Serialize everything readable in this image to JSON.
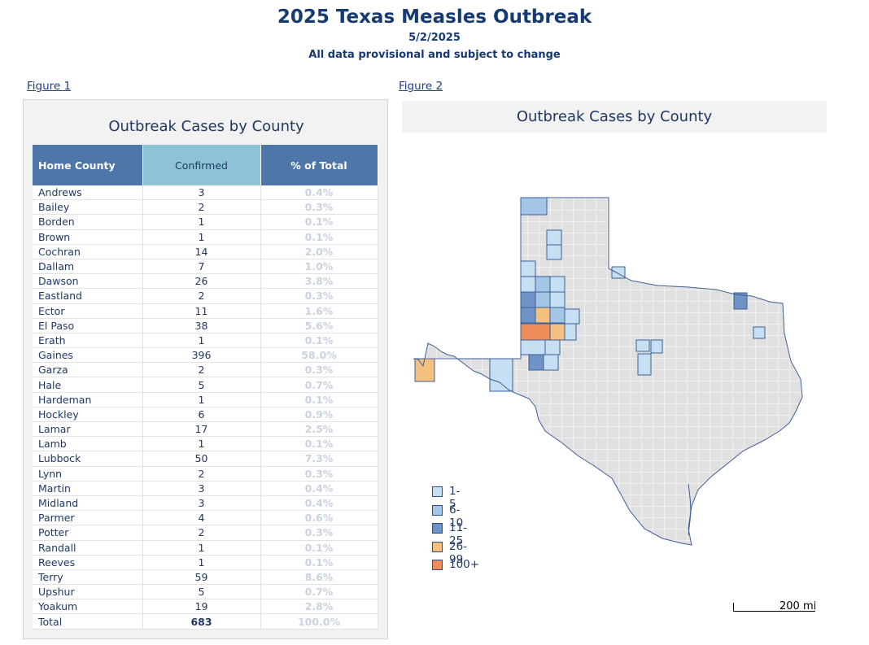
{
  "header": {
    "title": "2025 Texas Measles Outbreak",
    "date": "5/2/2025",
    "note": "All data provisional and subject to change"
  },
  "figure1": {
    "link_label": "Figure 1",
    "title": "Outbreak Cases by County",
    "columns": [
      "Home County",
      "Confirmed",
      "% of Total"
    ],
    "rows": [
      {
        "county": "Andrews",
        "confirmed": "3",
        "pct": "0.4%"
      },
      {
        "county": "Bailey",
        "confirmed": "2",
        "pct": "0.3%"
      },
      {
        "county": "Borden",
        "confirmed": "1",
        "pct": "0.1%"
      },
      {
        "county": "Brown",
        "confirmed": "1",
        "pct": "0.1%"
      },
      {
        "county": "Cochran",
        "confirmed": "14",
        "pct": "2.0%"
      },
      {
        "county": "Dallam",
        "confirmed": "7",
        "pct": "1.0%"
      },
      {
        "county": "Dawson",
        "confirmed": "26",
        "pct": "3.8%"
      },
      {
        "county": "Eastland",
        "confirmed": "2",
        "pct": "0.3%"
      },
      {
        "county": "Ector",
        "confirmed": "11",
        "pct": "1.6%"
      },
      {
        "county": "El Paso",
        "confirmed": "38",
        "pct": "5.6%"
      },
      {
        "county": "Erath",
        "confirmed": "1",
        "pct": "0.1%"
      },
      {
        "county": "Gaines",
        "confirmed": "396",
        "pct": "58.0%"
      },
      {
        "county": "Garza",
        "confirmed": "2",
        "pct": "0.3%"
      },
      {
        "county": "Hale",
        "confirmed": "5",
        "pct": "0.7%"
      },
      {
        "county": "Hardeman",
        "confirmed": "1",
        "pct": "0.1%"
      },
      {
        "county": "Hockley",
        "confirmed": "6",
        "pct": "0.9%"
      },
      {
        "county": "Lamar",
        "confirmed": "17",
        "pct": "2.5%"
      },
      {
        "county": "Lamb",
        "confirmed": "1",
        "pct": "0.1%"
      },
      {
        "county": "Lubbock",
        "confirmed": "50",
        "pct": "7.3%"
      },
      {
        "county": "Lynn",
        "confirmed": "2",
        "pct": "0.3%"
      },
      {
        "county": "Martin",
        "confirmed": "3",
        "pct": "0.4%"
      },
      {
        "county": "Midland",
        "confirmed": "3",
        "pct": "0.4%"
      },
      {
        "county": "Parmer",
        "confirmed": "4",
        "pct": "0.6%"
      },
      {
        "county": "Potter",
        "confirmed": "2",
        "pct": "0.3%"
      },
      {
        "county": "Randall",
        "confirmed": "1",
        "pct": "0.1%"
      },
      {
        "county": "Reeves",
        "confirmed": "1",
        "pct": "0.1%"
      },
      {
        "county": "Terry",
        "confirmed": "59",
        "pct": "8.6%"
      },
      {
        "county": "Upshur",
        "confirmed": "5",
        "pct": "0.7%"
      },
      {
        "county": "Yoakum",
        "confirmed": "19",
        "pct": "2.8%"
      }
    ],
    "total": {
      "label": "Total",
      "confirmed": "683",
      "pct": "100.0%"
    }
  },
  "figure2": {
    "link_label": "Figure 2",
    "title": "Outbreak Cases by County",
    "legend": [
      {
        "label": "1-5",
        "color": "#c6dff2"
      },
      {
        "label": "6-10",
        "color": "#a4c6e6"
      },
      {
        "label": "11-25",
        "color": "#6e93c4"
      },
      {
        "label": "26-99",
        "color": "#f4c07f"
      },
      {
        "label": "100+",
        "color": "#ee8c5a"
      }
    ],
    "scale_label": "200 mi",
    "base_color": "#e0e0e0",
    "outline_color": "#3d5f99"
  }
}
